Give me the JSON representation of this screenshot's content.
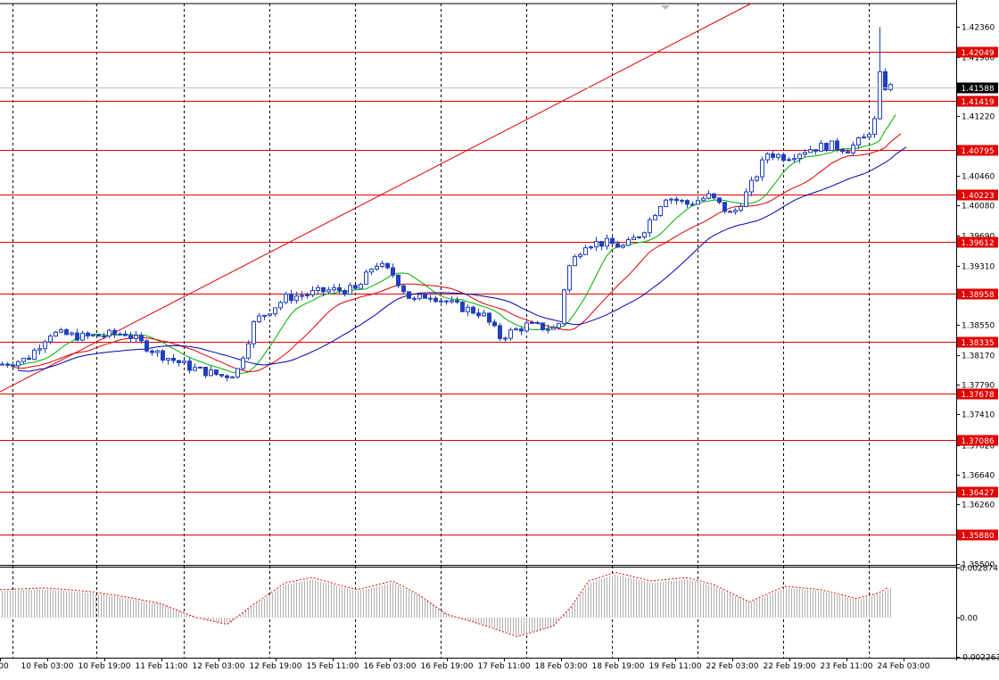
{
  "chart_data": {
    "type": "candlestick",
    "price_axis": {
      "ylim": [
        1.355,
        1.4266
      ],
      "tick_labels": [
        "1.42360",
        "1.41980",
        "1.41220",
        "1.40460",
        "1.40080",
        "1.39690",
        "1.39310",
        "1.38930",
        "1.38550",
        "1.38170",
        "1.37790",
        "1.37410",
        "1.37020",
        "1.36640",
        "1.36260",
        "1.35500"
      ],
      "current_price": "1.41588",
      "current_price_color": "#000000"
    },
    "horizontal_levels": [
      {
        "label": "1.42049",
        "value": 1.42049
      },
      {
        "label": "1.41419",
        "value": 1.41419
      },
      {
        "label": "1.40795",
        "value": 1.40795
      },
      {
        "label": "1.40223",
        "value": 1.40223
      },
      {
        "label": "1.39612",
        "value": 1.39612
      },
      {
        "label": "1.38958",
        "value": 1.38958
      },
      {
        "label": "1.38335",
        "value": 1.38335
      },
      {
        "label": "1.37678",
        "value": 1.37678
      },
      {
        "label": "1.37086",
        "value": 1.37086
      },
      {
        "label": "1.36427",
        "value": 1.36427
      },
      {
        "label": "1.35880",
        "value": 1.3588
      }
    ],
    "level_color": "#e00000",
    "trendline": {
      "from": [
        0,
        1.377
      ],
      "to": [
        842,
        1.4266
      ],
      "color": "#e00000"
    },
    "time_labels": [
      "00",
      "10 Feb 03:00",
      "10 Feb 19:00",
      "11 Feb 11:00",
      "12 Feb 03:00",
      "12 Feb 19:00",
      "15 Feb 11:00",
      "16 Feb 03:00",
      "16 Feb 19:00",
      "17 Feb 11:00",
      "18 Feb 03:00",
      "18 Feb 19:00",
      "19 Feb 11:00",
      "22 Feb 03:00",
      "22 Feb 19:00",
      "23 Feb 11:00",
      "24 Feb 03:00"
    ],
    "key_points": [
      [
        0,
        1.3805
      ],
      [
        30,
        1.3812
      ],
      [
        55,
        1.3845
      ],
      [
        95,
        1.384
      ],
      [
        140,
        1.3845
      ],
      [
        175,
        1.382
      ],
      [
        215,
        1.38
      ],
      [
        250,
        1.379
      ],
      [
        265,
        1.3795
      ],
      [
        285,
        1.386
      ],
      [
        320,
        1.389
      ],
      [
        370,
        1.39
      ],
      [
        400,
        1.39
      ],
      [
        420,
        1.3935
      ],
      [
        440,
        1.392
      ],
      [
        462,
        1.3885
      ],
      [
        480,
        1.3895
      ],
      [
        510,
        1.388
      ],
      [
        540,
        1.387
      ],
      [
        560,
        1.384
      ],
      [
        590,
        1.3855
      ],
      [
        625,
        1.385
      ],
      [
        635,
        1.3925
      ],
      [
        655,
        1.396
      ],
      [
        680,
        1.396
      ],
      [
        700,
        1.3955
      ],
      [
        720,
        1.3975
      ],
      [
        745,
        1.402
      ],
      [
        770,
        1.401
      ],
      [
        795,
        1.402
      ],
      [
        820,
        1.3995
      ],
      [
        840,
        1.403
      ],
      [
        860,
        1.4075
      ],
      [
        880,
        1.407
      ],
      [
        905,
        1.408
      ],
      [
        930,
        1.4085
      ],
      [
        950,
        1.408
      ],
      [
        970,
        1.4095
      ],
      [
        982,
        1.412
      ],
      [
        988,
        1.42
      ],
      [
        992,
        1.416
      ],
      [
        998,
        1.4159
      ]
    ],
    "moving_averages": [
      {
        "color": "#00b000",
        "lag": 7
      },
      {
        "color": "#e00000",
        "lag": 14
      },
      {
        "color": "#0000b0",
        "lag": 24
      }
    ],
    "candle_color": "#1f3fbf",
    "oscillator": {
      "tick_labels": [
        "0.002874",
        "0.00",
        "-0.002263"
      ],
      "ylim": [
        -0.002263,
        0.002874
      ],
      "line_color": "#e00000",
      "bar_color": "#b0b0b0",
      "key_points": [
        [
          0,
          0.0016
        ],
        [
          50,
          0.0017
        ],
        [
          100,
          0.0015
        ],
        [
          140,
          0.0012
        ],
        [
          180,
          0.0008
        ],
        [
          220,
          0.0
        ],
        [
          255,
          -0.0004
        ],
        [
          280,
          0.0006
        ],
        [
          320,
          0.002
        ],
        [
          350,
          0.0023
        ],
        [
          400,
          0.0016
        ],
        [
          440,
          0.0021
        ],
        [
          470,
          0.0013
        ],
        [
          500,
          0.0002
        ],
        [
          540,
          -0.0004
        ],
        [
          580,
          -0.0011
        ],
        [
          620,
          -0.0005
        ],
        [
          640,
          0.0006
        ],
        [
          660,
          0.0021
        ],
        [
          690,
          0.0026
        ],
        [
          730,
          0.0021
        ],
        [
          770,
          0.0023
        ],
        [
          800,
          0.0019
        ],
        [
          840,
          0.0009
        ],
        [
          880,
          0.0018
        ],
        [
          920,
          0.0016
        ],
        [
          960,
          0.0011
        ],
        [
          985,
          0.0014
        ],
        [
          998,
          0.0018
        ]
      ]
    }
  }
}
